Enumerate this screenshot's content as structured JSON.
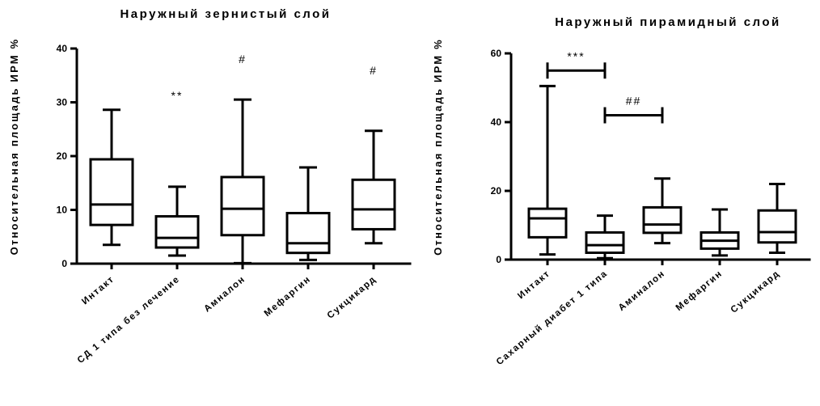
{
  "chart_data": [
    {
      "type": "box",
      "title": "Наружный зернистый слой",
      "ylabel": "Относительная площадь ИРМ %",
      "ylim": [
        0,
        40
      ],
      "yticks": [
        0,
        10,
        20,
        30,
        40
      ],
      "categories": [
        "Интакт",
        "СД 1 типа без лечение",
        "Амналон",
        "Мефаргин",
        "Сукцикард"
      ],
      "boxes": [
        {
          "min": 3.5,
          "q1": 7.2,
          "median": 11.0,
          "q3": 19.4,
          "max": 28.6
        },
        {
          "min": 1.5,
          "q1": 3.0,
          "median": 4.8,
          "q3": 8.8,
          "max": 14.3
        },
        {
          "min": 0.1,
          "q1": 5.3,
          "median": 10.2,
          "q3": 16.1,
          "max": 30.5
        },
        {
          "min": 0.7,
          "q1": 2.0,
          "median": 3.8,
          "q3": 9.4,
          "max": 17.9
        },
        {
          "min": 3.8,
          "q1": 6.4,
          "median": 10.1,
          "q3": 15.6,
          "max": 24.7
        }
      ],
      "annotations": [
        {
          "text": "**",
          "category_index": 1,
          "y": 30.5
        },
        {
          "text": "#",
          "category_index": 2,
          "y": 37.3
        },
        {
          "text": "#",
          "category_index": 4,
          "y": 35.2
        }
      ]
    },
    {
      "type": "box",
      "title": "Наружный пирамидный слой",
      "ylabel": "Относительная площадь ИРМ %",
      "ylim": [
        0,
        60
      ],
      "yticks": [
        0,
        20,
        40,
        60
      ],
      "categories": [
        "Интакт",
        "Сахарный диабет 1 типа",
        "Аминалон",
        "Мефаргин",
        "Сукцикард"
      ],
      "boxes": [
        {
          "min": 1.5,
          "q1": 6.5,
          "median": 12.0,
          "q3": 14.8,
          "max": 50.5
        },
        {
          "min": 0.4,
          "q1": 2.0,
          "median": 4.2,
          "q3": 7.9,
          "max": 12.8
        },
        {
          "min": 4.8,
          "q1": 7.8,
          "median": 10.2,
          "q3": 15.2,
          "max": 23.6
        },
        {
          "min": 1.2,
          "q1": 3.2,
          "median": 5.5,
          "q3": 7.9,
          "max": 14.6
        },
        {
          "min": 2.0,
          "q1": 5.0,
          "median": 8.0,
          "q3": 14.3,
          "max": 22.0
        }
      ],
      "brackets": [
        {
          "text": "***",
          "from": 0,
          "to": 1,
          "y": 55.0
        },
        {
          "text": "##",
          "from": 1,
          "to": 2,
          "y": 42.0
        }
      ]
    }
  ]
}
